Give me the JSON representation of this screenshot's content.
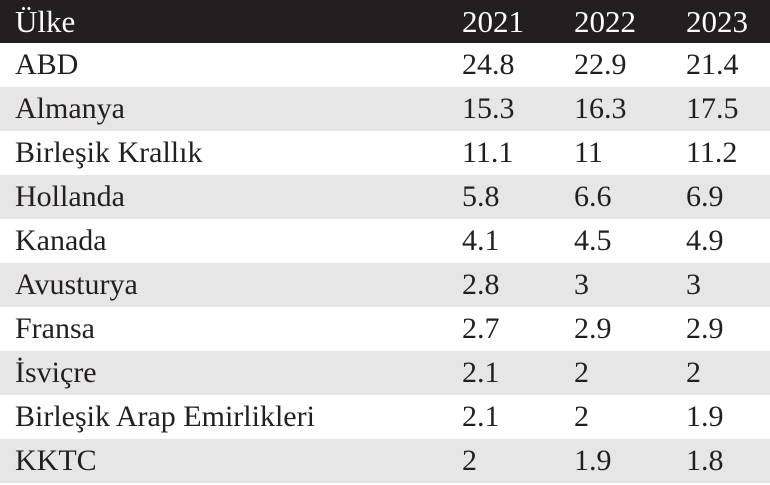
{
  "chart_data": {
    "type": "table",
    "columns": [
      "Ülke",
      "2021",
      "2022",
      "2023"
    ],
    "rows": [
      [
        "ABD",
        "24.8",
        "22.9",
        "21.4"
      ],
      [
        "Almanya",
        "15.3",
        "16.3",
        "17.5"
      ],
      [
        "Birleşik Krallık",
        "11.1",
        "11",
        "11.2"
      ],
      [
        "Hollanda",
        "5.8",
        "6.6",
        "6.9"
      ],
      [
        "Kanada",
        "4.1",
        "4.5",
        "4.9"
      ],
      [
        "Avusturya",
        "2.8",
        "3",
        "3"
      ],
      [
        "Fransa",
        "2.7",
        "2.9",
        "2.9"
      ],
      [
        "İsviçre",
        "2.1",
        "2",
        "2"
      ],
      [
        "Birleşik Arap Emirlikleri",
        "2.1",
        "2",
        "1.9"
      ],
      [
        "KKTC",
        "2",
        "1.9",
        "1.8"
      ]
    ]
  },
  "colors": {
    "header_background": "#231f20",
    "header_text": "#ffffff",
    "row_alt_background": "#e6e6e6",
    "row_background": "#ffffff",
    "text": "#231f20"
  }
}
